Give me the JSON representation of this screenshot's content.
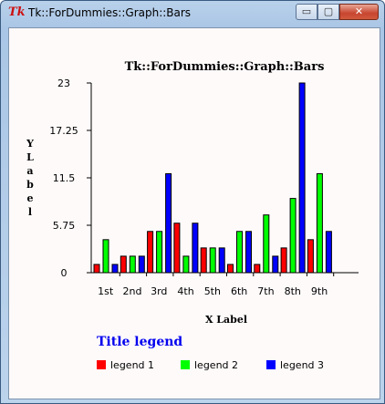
{
  "window": {
    "title": "Tk::ForDummies::Graph::Bars",
    "app_icon": "tk-feather-icon",
    "minimize_label": "▭",
    "maximize_label": "▢",
    "close_label": "✕"
  },
  "chart_data": {
    "type": "bar",
    "title": "Tk::ForDummies::Graph::Bars",
    "xlabel": "X Label",
    "ylabel": "YLabel",
    "categories": [
      "1st",
      "2nd",
      "3rd",
      "4th",
      "5th",
      "6th",
      "7th",
      "8th",
      "9th"
    ],
    "ylim": [
      0,
      23
    ],
    "yticks": [
      "0",
      "5.75",
      "11.5",
      "17.25",
      "23"
    ],
    "series": [
      {
        "name": "legend 1",
        "color": "#ff0000",
        "values": [
          1,
          2,
          5,
          6,
          3,
          1,
          1,
          3,
          4
        ]
      },
      {
        "name": "legend 2",
        "color": "#00ff00",
        "values": [
          4,
          2,
          5,
          2,
          3,
          5,
          7,
          9,
          12
        ]
      },
      {
        "name": "legend 3",
        "color": "#0000ff",
        "values": [
          1,
          2,
          12,
          6,
          3,
          5,
          2,
          23,
          5
        ]
      }
    ],
    "legend_title": "Title legend",
    "legend_position": "bottom",
    "grid": false
  }
}
